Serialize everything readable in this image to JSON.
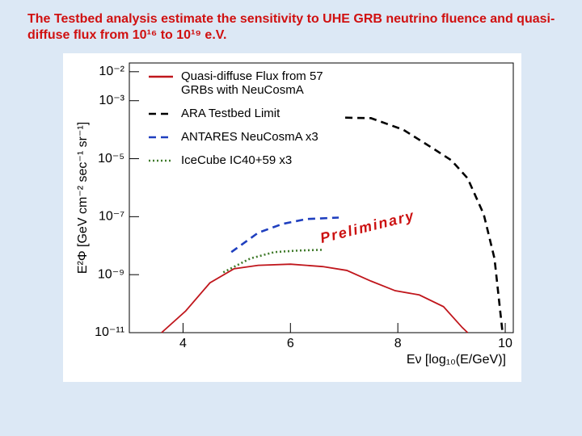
{
  "chart_data": {
    "type": "line",
    "title": "The Testbed analysis estimate the sensitivity to UHE GRB neutrino fluence and quasi-diffuse flux from 10¹⁶ to  10¹⁹ e.V.",
    "xlabel": "Eν [log₁₀(E/GeV)]",
    "ylabel": "E²Φ [GeV cm⁻² sec⁻¹ sr⁻¹]",
    "annotation": "Preliminary",
    "xlim": [
      3,
      10.15
    ],
    "xticks": [
      4,
      6,
      8,
      10
    ],
    "ylim": [
      1e-11,
      0.02
    ],
    "log_y": true,
    "yticks": [
      {
        "value": 0.01,
        "label": "10⁻²"
      },
      {
        "value": 0.001,
        "label": "10⁻³"
      },
      {
        "value": 1e-05,
        "label": "10⁻⁵"
      },
      {
        "value": 1e-07,
        "label": "10⁻⁷"
      },
      {
        "value": 1e-09,
        "label": "10⁻⁹"
      },
      {
        "value": 1e-11,
        "label": "10⁻¹¹"
      }
    ],
    "legend": "upper left",
    "series": [
      {
        "name": "Quasi-diffuse Flux from 57 GRBs with NeuCosmA",
        "color": "#c0161c",
        "style": "solid",
        "x": [
          3.6,
          4.05,
          4.5,
          4.95,
          5.4,
          6.0,
          6.6,
          7.05,
          7.5,
          7.95,
          8.4,
          8.85,
          9.2,
          9.3
        ],
        "values": [
          1e-11,
          5.6e-11,
          5.2e-10,
          1.6e-09,
          2.1e-09,
          2.3e-09,
          1.9e-09,
          1.4e-09,
          6e-10,
          2.8e-10,
          2e-10,
          7.9e-11,
          1.5e-11,
          1e-11
        ]
      },
      {
        "name": "ARA Testbed Limit",
        "color": "#000000",
        "style": "dashed",
        "x": [
          7.02,
          7.5,
          8.1,
          8.7,
          9.0,
          9.3,
          9.6,
          9.8,
          9.95
        ],
        "values": [
          0.00026,
          0.00025,
          0.0001,
          2e-05,
          8.7e-06,
          2.1e-06,
          1.2e-07,
          3.6e-09,
          1e-11
        ]
      },
      {
        "name": "ANTARES NeuCosmA x3",
        "color": "#1f3fbf",
        "style": "dashed",
        "x": [
          4.9,
          5.4,
          5.85,
          6.3,
          6.9
        ],
        "values": [
          6e-09,
          2.8e-08,
          5.6e-08,
          8.3e-08,
          9.3e-08
        ]
      },
      {
        "name": "IceCube IC40+59 x3",
        "color": "#3f7a2a",
        "style": "dotted",
        "x": [
          4.75,
          5.25,
          5.7,
          6.15,
          6.6
        ],
        "values": [
          1.2e-09,
          3.6e-09,
          6e-09,
          6.8e-09,
          7.2e-09
        ]
      }
    ]
  }
}
